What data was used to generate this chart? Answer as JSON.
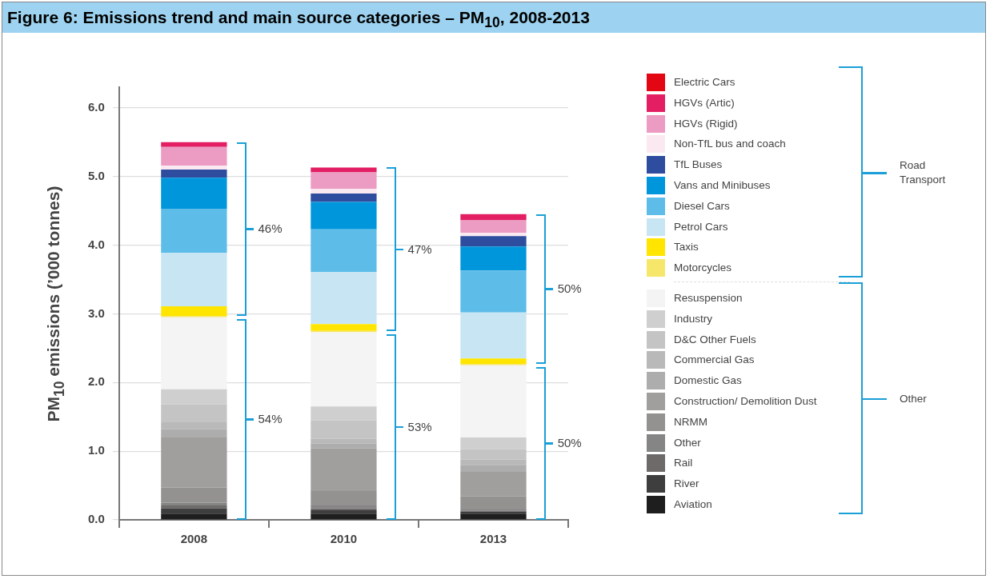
{
  "chart_data": {
    "type": "bar",
    "stacked": true,
    "title": "Figure 6: Emissions trend and main source categories – PM$_{10}$, 2008-2013",
    "ylabel": "PM$_{10}$ emissions (’000 tonnes)",
    "categories": [
      "2008",
      "2010",
      "2013"
    ],
    "ylim": [
      0,
      6.3
    ],
    "yticks": [
      {
        "value": 0,
        "label": "0.0"
      },
      {
        "value": 1,
        "label": "1.0"
      },
      {
        "value": 2,
        "label": "2.0"
      },
      {
        "value": 3,
        "label": "3.0"
      },
      {
        "value": 4,
        "label": "4.0"
      },
      {
        "value": 5,
        "label": "5.0"
      },
      {
        "value": 6,
        "label": "6.0"
      }
    ],
    "grid": "y",
    "legend": "right",
    "series": [
      {
        "name": "Aviation",
        "color": "#1e1e1e",
        "values": [
          0.09,
          0.09,
          0.09
        ]
      },
      {
        "name": "River",
        "color": "#3e3e3e",
        "values": [
          0.08,
          0.05,
          0.03
        ]
      },
      {
        "name": "Rail",
        "color": "#6f6a6a",
        "values": [
          0.04,
          0.03,
          0.01
        ]
      },
      {
        "name": "Other",
        "color": "#858585",
        "values": [
          0.04,
          0.04,
          0.02
        ]
      },
      {
        "name": "NRMM",
        "color": "#949290",
        "values": [
          0.22,
          0.21,
          0.19
        ]
      },
      {
        "name": "Construction/ Demolition Dust",
        "color": "#a19f9d",
        "values": [
          0.73,
          0.62,
          0.36
        ]
      },
      {
        "name": "Domestic Gas",
        "color": "#adadad",
        "values": [
          0.12,
          0.07,
          0.1
        ]
      },
      {
        "name": "Commercial Gas",
        "color": "#b9b9b9",
        "values": [
          0.1,
          0.07,
          0.08
        ]
      },
      {
        "name": "D&C Other Fuels",
        "color": "#c4c4c4",
        "values": [
          0.26,
          0.27,
          0.15
        ]
      },
      {
        "name": "Industry",
        "color": "#cfcfcf",
        "values": [
          0.22,
          0.2,
          0.17
        ]
      },
      {
        "name": "Resuspension",
        "color": "#f4f4f4",
        "values": [
          1.05,
          1.08,
          1.05
        ]
      },
      {
        "name": "Motorcycles",
        "color": "#f6e76a",
        "values": [
          0.02,
          0.02,
          0.02
        ]
      },
      {
        "name": "Taxis",
        "color": "#ffe500",
        "values": [
          0.14,
          0.1,
          0.08
        ]
      },
      {
        "name": "Petrol Cars",
        "color": "#c8e5f3",
        "values": [
          0.78,
          0.76,
          0.67
        ]
      },
      {
        "name": "Diesel Cars",
        "color": "#5dbde8",
        "values": [
          0.64,
          0.62,
          0.61
        ]
      },
      {
        "name": "Vans and Minibuses",
        "color": "#0096db",
        "values": [
          0.45,
          0.4,
          0.35
        ]
      },
      {
        "name": "TfL Buses",
        "color": "#2e4d9e",
        "values": [
          0.12,
          0.12,
          0.15
        ]
      },
      {
        "name": "Non-TfL bus and coach",
        "color": "#fbe9f2",
        "values": [
          0.06,
          0.07,
          0.05
        ]
      },
      {
        "name": "HGVs (Rigid)",
        "color": "#ec9bc3",
        "values": [
          0.27,
          0.24,
          0.18
        ]
      },
      {
        "name": "HGVs (Artic)",
        "color": "#e31e63",
        "values": [
          0.07,
          0.07,
          0.09
        ]
      },
      {
        "name": "Electric Cars",
        "color": "#e30613",
        "values": [
          0,
          0,
          0
        ]
      }
    ],
    "annotations": [
      "46%",
      "54%",
      "47%",
      "53%",
      "50%",
      "50%",
      "Road Transport",
      "Other"
    ]
  }
}
